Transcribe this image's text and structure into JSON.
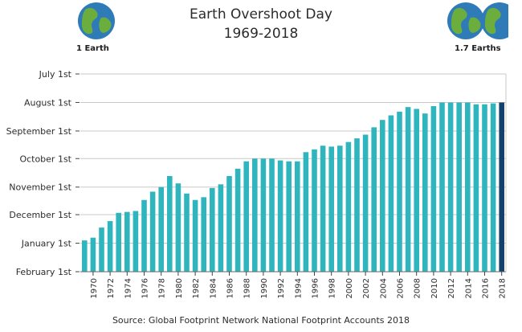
{
  "title": "Earth Overshoot Day",
  "subtitle": "1969-2018",
  "left_globe_label": "1 Earth",
  "right_globe_label": "1.7 Earths",
  "source": "Source: Global Footprint Network National Footprint Accounts 2018",
  "colors": {
    "bar": "#2fb5bd",
    "highlight_bar": "#14406e",
    "grid": "#c9c9c9",
    "ocean": "#2f7bb8",
    "land": "#6cae3d"
  },
  "chart_data": {
    "type": "bar",
    "x": [
      1969,
      1970,
      1971,
      1972,
      1973,
      1974,
      1975,
      1976,
      1977,
      1978,
      1979,
      1980,
      1981,
      1982,
      1983,
      1984,
      1985,
      1986,
      1987,
      1988,
      1989,
      1990,
      1991,
      1992,
      1993,
      1994,
      1995,
      1996,
      1997,
      1998,
      1999,
      2000,
      2001,
      2002,
      2003,
      2004,
      2005,
      2006,
      2007,
      2008,
      2009,
      2010,
      2011,
      2012,
      2013,
      2014,
      2015,
      2016,
      2017,
      2018
    ],
    "x_tick_labels": [
      "1970",
      "1972",
      "1974",
      "1976",
      "1978",
      "1980",
      "1982",
      "1984",
      "1986",
      "1988",
      "1990",
      "1992",
      "1994",
      "1996",
      "1998",
      "2000",
      "2002",
      "2004",
      "2006",
      "2008",
      "2010",
      "2012",
      "2014",
      "2016",
      "2018"
    ],
    "values": [
      "Dec 29",
      "Dec 26",
      "Dec 15",
      "Dec 8",
      "Nov 29",
      "Nov 28",
      "Nov 27",
      "Nov 15",
      "Nov 6",
      "Nov 1",
      "Oct 20",
      "Oct 28",
      "Nov 8",
      "Nov 15",
      "Nov 12",
      "Nov 2",
      "Oct 29",
      "Oct 20",
      "Oct 12",
      "Oct 4",
      "Oct 1",
      "Oct 1",
      "Oct 1",
      "Oct 3",
      "Oct 4",
      "Oct 4",
      "Sep 24",
      "Sep 21",
      "Sep 17",
      "Sep 18",
      "Sep 17",
      "Sep 13",
      "Sep 9",
      "Sep 5",
      "Aug 28",
      "Aug 20",
      "Aug 15",
      "Aug 11",
      "Aug 6",
      "Aug 8",
      "Aug 13",
      "Aug 5",
      "Aug 1",
      "Aug 1",
      "Aug 1",
      "Aug 1",
      "Aug 3",
      "Aug 3",
      "Aug 2",
      "Aug 1"
    ],
    "highlight_year": 2018,
    "y_tick_labels": [
      "July 1st",
      "August 1st",
      "September 1st",
      "October 1st",
      "November 1st",
      "December 1st",
      "January 1st",
      "February 1st"
    ],
    "grid": true
  }
}
